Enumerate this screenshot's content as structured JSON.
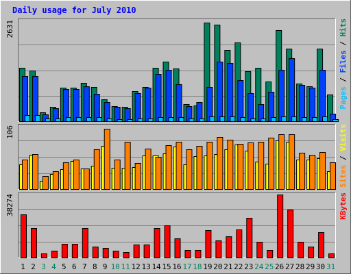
{
  "chart": {
    "title": "Daily usage for July 2010",
    "colors": {
      "background": "#c0c0c0",
      "plot": "#c0c0c0",
      "title": "#0000ff",
      "hits": "#00805c",
      "files": "#0040ff",
      "pages": "#00c0ff",
      "visits": "#ffff00",
      "sites": "#ff8000",
      "kbytes": "#ff0000",
      "weekend_label": "#00805c",
      "weekday_label": "#000000",
      "grid": "#808080"
    }
  },
  "chart_data": [
    {
      "type": "bar",
      "name": "hits-files-pages",
      "max_label": "2631",
      "ymax": 2631,
      "ylim": [
        0,
        2631
      ],
      "legend": [
        {
          "text": "Pages",
          "color": "#00c0ff"
        },
        {
          "text": " / ",
          "color": "#000000"
        },
        {
          "text": "Files",
          "color": "#0040ff"
        },
        {
          "text": " / ",
          "color": "#000000"
        },
        {
          "text": "Hits",
          "color": "#00805c"
        }
      ],
      "categories": [
        "1",
        "2",
        "3",
        "4",
        "5",
        "6",
        "7",
        "8",
        "9",
        "10",
        "11",
        "12",
        "13",
        "14",
        "15",
        "16",
        "17",
        "18",
        "19",
        "20",
        "21",
        "22",
        "23",
        "24",
        "25",
        "26",
        "27",
        "28",
        "29",
        "30",
        "31"
      ],
      "series": [
        {
          "name": "Hits",
          "color": "#00805c",
          "values": [
            1400,
            1330,
            230,
            370,
            880,
            880,
            1000,
            900,
            580,
            400,
            380,
            780,
            900,
            1400,
            1550,
            1370,
            440,
            420,
            2570,
            2530,
            1860,
            2050,
            1310,
            1400,
            1040,
            2380,
            1890,
            990,
            920,
            1900,
            690
          ]
        },
        {
          "name": "Files",
          "color": "#0040ff",
          "values": [
            1190,
            1180,
            180,
            340,
            840,
            840,
            920,
            710,
            500,
            380,
            340,
            740,
            870,
            1230,
            1350,
            960,
            400,
            510,
            890,
            1550,
            1530,
            1070,
            730,
            440,
            770,
            1350,
            1640,
            940,
            880,
            1340,
            200
          ]
        },
        {
          "name": "Pages",
          "color": "#00c0ff",
          "values": [
            155,
            155,
            75,
            75,
            110,
            110,
            110,
            105,
            70,
            60,
            60,
            75,
            75,
            110,
            110,
            110,
            75,
            75,
            125,
            125,
            125,
            110,
            75,
            75,
            110,
            125,
            125,
            110,
            110,
            125,
            50
          ]
        }
      ]
    },
    {
      "type": "bar",
      "name": "visits-sites",
      "max_label": "106",
      "ymax": 106,
      "ylim": [
        0,
        106
      ],
      "legend": [
        {
          "text": "Sites",
          "color": "#ff8000"
        },
        {
          "text": " / ",
          "color": "#000000"
        },
        {
          "text": "Visits",
          "color": "#ffff00"
        }
      ],
      "categories": [
        "1",
        "2",
        "3",
        "4",
        "5",
        "6",
        "7",
        "8",
        "9",
        "10",
        "11",
        "12",
        "13",
        "14",
        "15",
        "16",
        "17",
        "18",
        "19",
        "20",
        "21",
        "22",
        "23",
        "24",
        "25",
        "26",
        "27",
        "28",
        "29",
        "30",
        "31"
      ],
      "series": [
        {
          "name": "Visits",
          "color": "#ffff00",
          "values": [
            42,
            58,
            14,
            25,
            33,
            47,
            34,
            39,
            73,
            36,
            36,
            37,
            56,
            56,
            60,
            71,
            42,
            55,
            56,
            59,
            67,
            75,
            65,
            46,
            43,
            82,
            79,
            50,
            50,
            52,
            30
          ]
        },
        {
          "name": "Sites",
          "color": "#ff8000",
          "values": [
            50,
            59,
            22,
            30,
            45,
            50,
            35,
            67,
            101,
            50,
            79,
            44,
            68,
            54,
            74,
            80,
            67,
            73,
            79,
            88,
            83,
            76,
            78,
            79,
            86,
            92,
            92,
            61,
            58,
            62,
            45
          ]
        }
      ]
    },
    {
      "type": "bar",
      "name": "kbytes",
      "max_label": "38274",
      "ymax": 38274,
      "ylim": [
        0,
        38274
      ],
      "legend": [
        {
          "text": "KBytes",
          "color": "#ff0000"
        }
      ],
      "categories": [
        "1",
        "2",
        "3",
        "4",
        "5",
        "6",
        "7",
        "8",
        "9",
        "10",
        "11",
        "12",
        "13",
        "14",
        "15",
        "16",
        "17",
        "18",
        "19",
        "20",
        "21",
        "22",
        "23",
        "24",
        "25",
        "26",
        "27",
        "28",
        "29",
        "30",
        "31"
      ],
      "series": [
        {
          "name": "KBytes",
          "color": "#ff0000",
          "values": [
            26200,
            17700,
            2300,
            4100,
            8400,
            8400,
            17700,
            6600,
            5800,
            4000,
            3500,
            7700,
            7700,
            17700,
            19700,
            11500,
            4700,
            4700,
            16500,
            10500,
            12800,
            17000,
            24300,
            9500,
            4700,
            38274,
            29100,
            9500,
            6600,
            15500,
            2300
          ]
        }
      ]
    }
  ],
  "x_axis": {
    "labels": [
      "1",
      "2",
      "3",
      "4",
      "5",
      "6",
      "7",
      "8",
      "9",
      "10",
      "11",
      "12",
      "13",
      "14",
      "15",
      "16",
      "17",
      "18",
      "19",
      "20",
      "21",
      "22",
      "23",
      "24",
      "25",
      "26",
      "27",
      "28",
      "29",
      "30",
      "31"
    ],
    "weekend": [
      3,
      4,
      10,
      11,
      17,
      18,
      24,
      25,
      31
    ]
  }
}
